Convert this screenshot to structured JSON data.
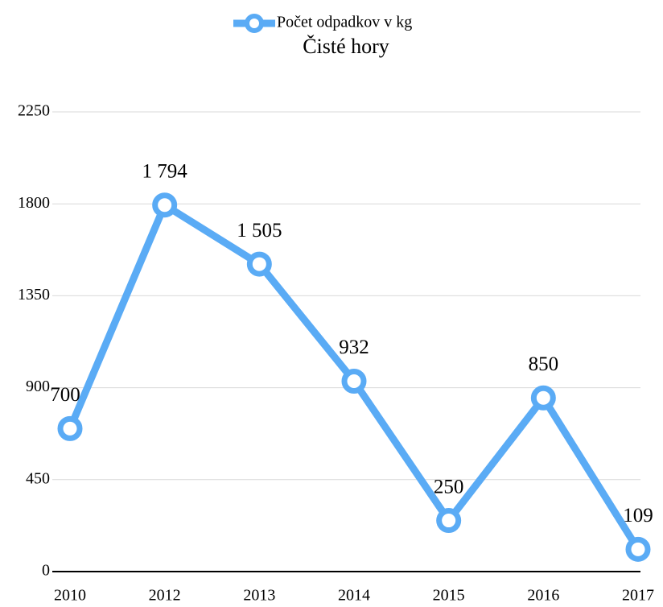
{
  "chart_data": {
    "type": "line",
    "title": "Čisté hory",
    "categories": [
      "2010",
      "2012",
      "2013",
      "2014",
      "2015",
      "2016",
      "2017"
    ],
    "series": [
      {
        "name": "Počet odpadkov v kg",
        "color": "#5aabf5",
        "values": [
          700,
          1794,
          1505,
          932,
          250,
          850,
          109
        ],
        "value_labels": [
          "700",
          "1 794",
          "1 505",
          "932",
          "250",
          "850",
          "109"
        ]
      }
    ],
    "ylim": [
      0,
      2250
    ],
    "yticks": [
      0,
      450,
      900,
      1350,
      1800,
      2250
    ],
    "grid": true,
    "legend": "top"
  }
}
